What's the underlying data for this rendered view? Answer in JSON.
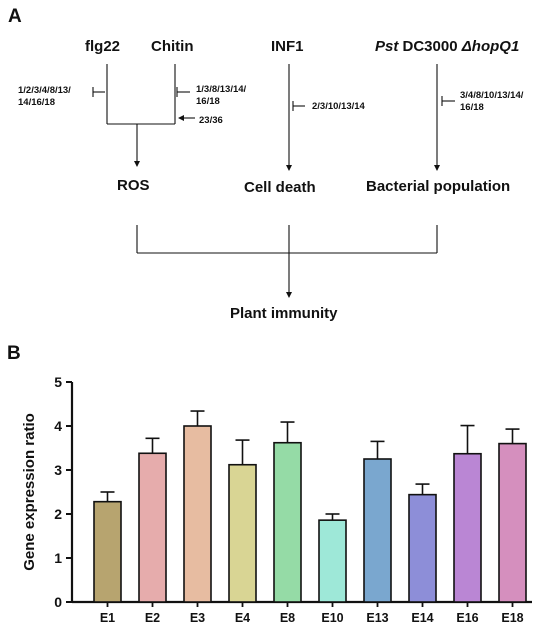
{
  "panel_a": {
    "label": "A",
    "elicitors": {
      "flg22": "flg22",
      "chitin": "Chitin",
      "inf1": "INF1",
      "pst_italic": "Pst",
      "pst_strain": " DC3000 ",
      "pst_mutant": "ΔhopQ1"
    },
    "annotations": {
      "flg22_genes_line1": "1/2/3/4/8/13/",
      "flg22_genes_line2": "14/16/18",
      "chitin_genes_line1": "1/3/8/13/14/",
      "chitin_genes_line2": "16/18",
      "combined_genes": "23/36",
      "inf1_genes": "2/3/10/13/14",
      "pst_genes_line1": "3/4/8/10/13/14/",
      "pst_genes_line2": "16/18"
    },
    "outcomes": {
      "ros": "ROS",
      "cell_death": "Cell death",
      "bacterial": "Bacterial population",
      "immunity": "Plant immunity"
    }
  },
  "panel_b": {
    "label": "B"
  },
  "chart_data": {
    "type": "bar",
    "categories": [
      "E1",
      "E2",
      "E3",
      "E4",
      "E8",
      "E10",
      "E13",
      "E14",
      "E16",
      "E18"
    ],
    "values": [
      2.28,
      3.38,
      4.0,
      3.12,
      3.62,
      1.86,
      3.25,
      2.44,
      3.37,
      3.6
    ],
    "errors": [
      0.22,
      0.34,
      0.34,
      0.56,
      0.47,
      0.14,
      0.4,
      0.24,
      0.64,
      0.33
    ],
    "colors": [
      "#b7a46f",
      "#e6acac",
      "#e7bca1",
      "#d9d594",
      "#95dba6",
      "#9ee8d8",
      "#7aa7cf",
      "#8d8ed8",
      "#ba86d4",
      "#d58fbe"
    ],
    "ylabel": "Gene expression ratio",
    "ylim": [
      0,
      5
    ],
    "yticks": [
      "0",
      "1",
      "2",
      "3",
      "4",
      "5"
    ]
  }
}
